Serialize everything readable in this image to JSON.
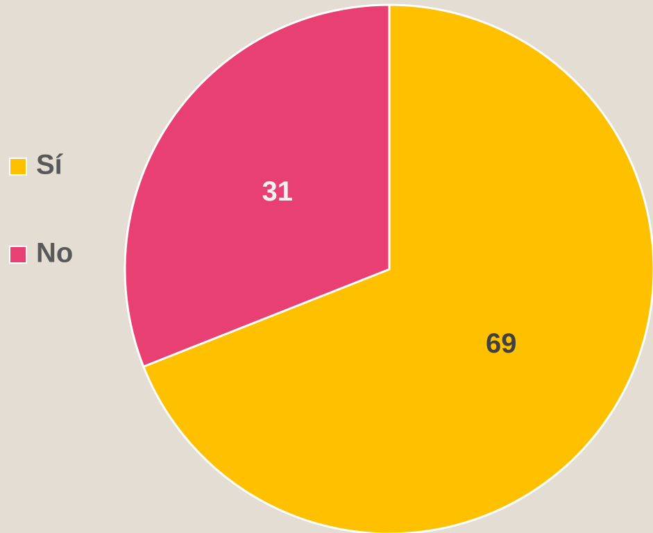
{
  "chart_data": {
    "type": "pie",
    "categories": [
      "Sí",
      "No"
    ],
    "values": [
      69,
      31
    ],
    "colors": [
      "#ffc000",
      "#e84072"
    ],
    "label_colors": [
      "#404040",
      "#f2f2f2"
    ],
    "legend": "left"
  }
}
